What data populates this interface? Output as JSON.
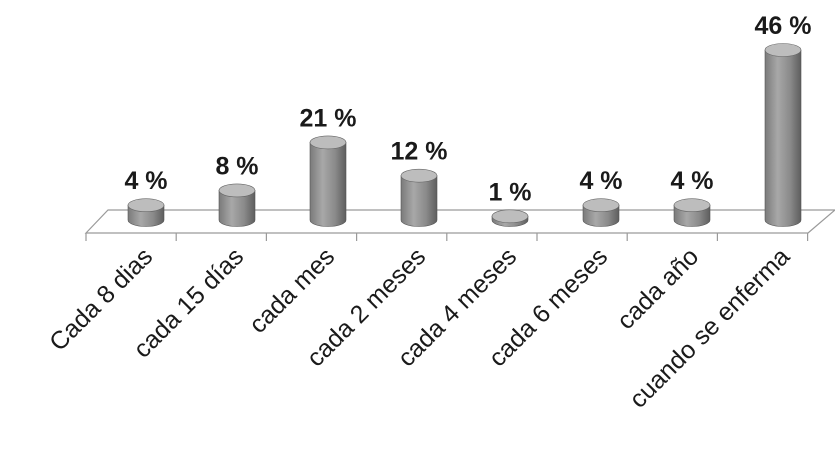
{
  "chart_data": {
    "type": "bar",
    "style": "3d-cylinder",
    "categories": [
      "Cada 8 dias",
      "cada 15 días",
      "cada mes",
      "cada 2 meses",
      "cada 4 meses",
      "cada 6 meses",
      "cada año",
      "cuando se enferma"
    ],
    "values": [
      4,
      8,
      21,
      12,
      1,
      4,
      4,
      46
    ],
    "labels": [
      "4 %",
      "8 %",
      "21 %",
      "12 %",
      "1 %",
      "4 %",
      "4 %",
      "46 %"
    ],
    "unit": "%",
    "ylim": [
      0,
      46
    ],
    "grid": false,
    "legend": "none",
    "colors": {
      "bar_body": "#8c8c8c",
      "bar_top": "#bdbdbd",
      "text": "#1a1a1a",
      "floor_line": "#9a9a9a"
    }
  }
}
